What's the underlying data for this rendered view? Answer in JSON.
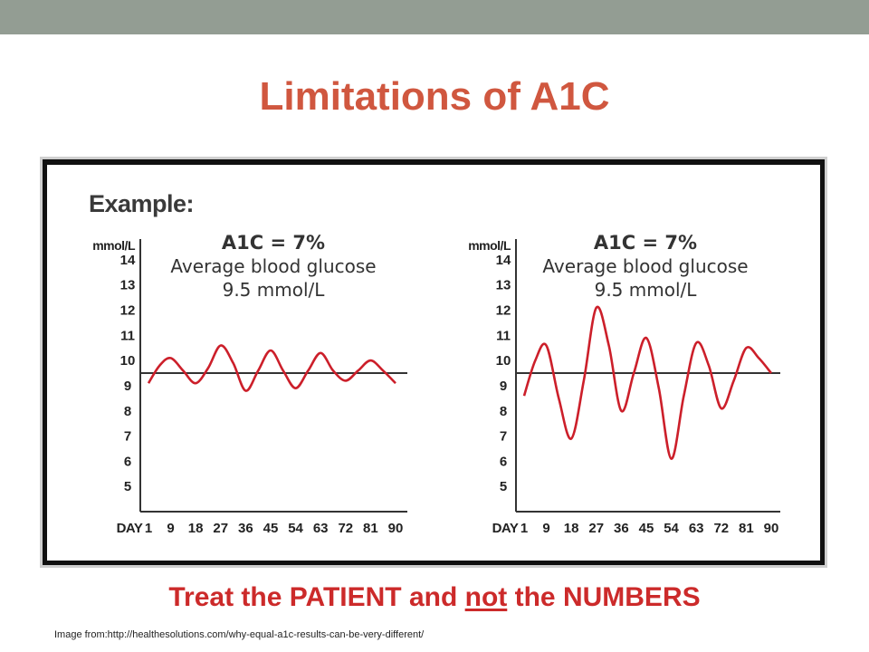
{
  "slide": {
    "title": "Limitations of A1C",
    "tagline_pre": "Treat the PATIENT and ",
    "tagline_em": "not",
    "tagline_post": " the NUMBERS",
    "source": "Image from:http://healthesolutions.com/why-equal-a1c-results-can-be-very-different/",
    "example_label": "Example:",
    "colors": {
      "title": "#d0573f",
      "tagline": "#cc2a2a",
      "curve": "#cc1f2a",
      "topbar": "#939d93"
    }
  },
  "chart_data": [
    {
      "type": "line",
      "annotation": [
        "A1C = 7%",
        "Average blood glucose",
        "9.5 mmol/L"
      ],
      "ylabel": "mmol/L",
      "xlabel": "DAY",
      "yticks": [
        14,
        13,
        12,
        11,
        10,
        9,
        8,
        7,
        6,
        5
      ],
      "xticks": [
        "1",
        "9",
        "18",
        "27",
        "36",
        "45",
        "54",
        "63",
        "72",
        "81",
        "90"
      ],
      "ylim": [
        4,
        14.5
      ],
      "xlim": [
        1,
        90
      ],
      "reference_line": 9.5,
      "series": [
        {
          "x": [
            1,
            5,
            9,
            13.5,
            18,
            22.5,
            27,
            31.5,
            36,
            40.5,
            45,
            49.5,
            54,
            58.5,
            63,
            67.5,
            72,
            76.5,
            81,
            85.5,
            90
          ],
          "y": [
            9.1,
            9.8,
            10.1,
            9.6,
            9.1,
            9.7,
            10.6,
            9.9,
            8.8,
            9.6,
            10.4,
            9.6,
            8.9,
            9.6,
            10.3,
            9.6,
            9.2,
            9.6,
            10.0,
            9.6,
            9.1
          ]
        }
      ]
    },
    {
      "type": "line",
      "annotation": [
        "A1C = 7%",
        "Average blood glucose",
        "9.5 mmol/L"
      ],
      "ylabel": "mmol/L",
      "xlabel": "DAY",
      "yticks": [
        14,
        13,
        12,
        11,
        10,
        9,
        8,
        7,
        6,
        5
      ],
      "xticks": [
        "1",
        "9",
        "18",
        "27",
        "36",
        "45",
        "54",
        "63",
        "72",
        "81",
        "90"
      ],
      "ylim": [
        4,
        14.5
      ],
      "xlim": [
        1,
        90
      ],
      "reference_line": 9.5,
      "series": [
        {
          "x": [
            1,
            5,
            9,
            13.5,
            18,
            22.5,
            27,
            31.5,
            36,
            40.5,
            45,
            49.5,
            54,
            58.5,
            63,
            67.5,
            72,
            76.5,
            81,
            85.5,
            90
          ],
          "y": [
            8.6,
            10.0,
            10.6,
            8.5,
            6.9,
            9.2,
            12.1,
            10.6,
            8.0,
            9.5,
            10.9,
            8.9,
            6.1,
            8.6,
            10.7,
            9.8,
            8.1,
            9.2,
            10.5,
            10.1,
            9.5
          ]
        }
      ]
    }
  ]
}
